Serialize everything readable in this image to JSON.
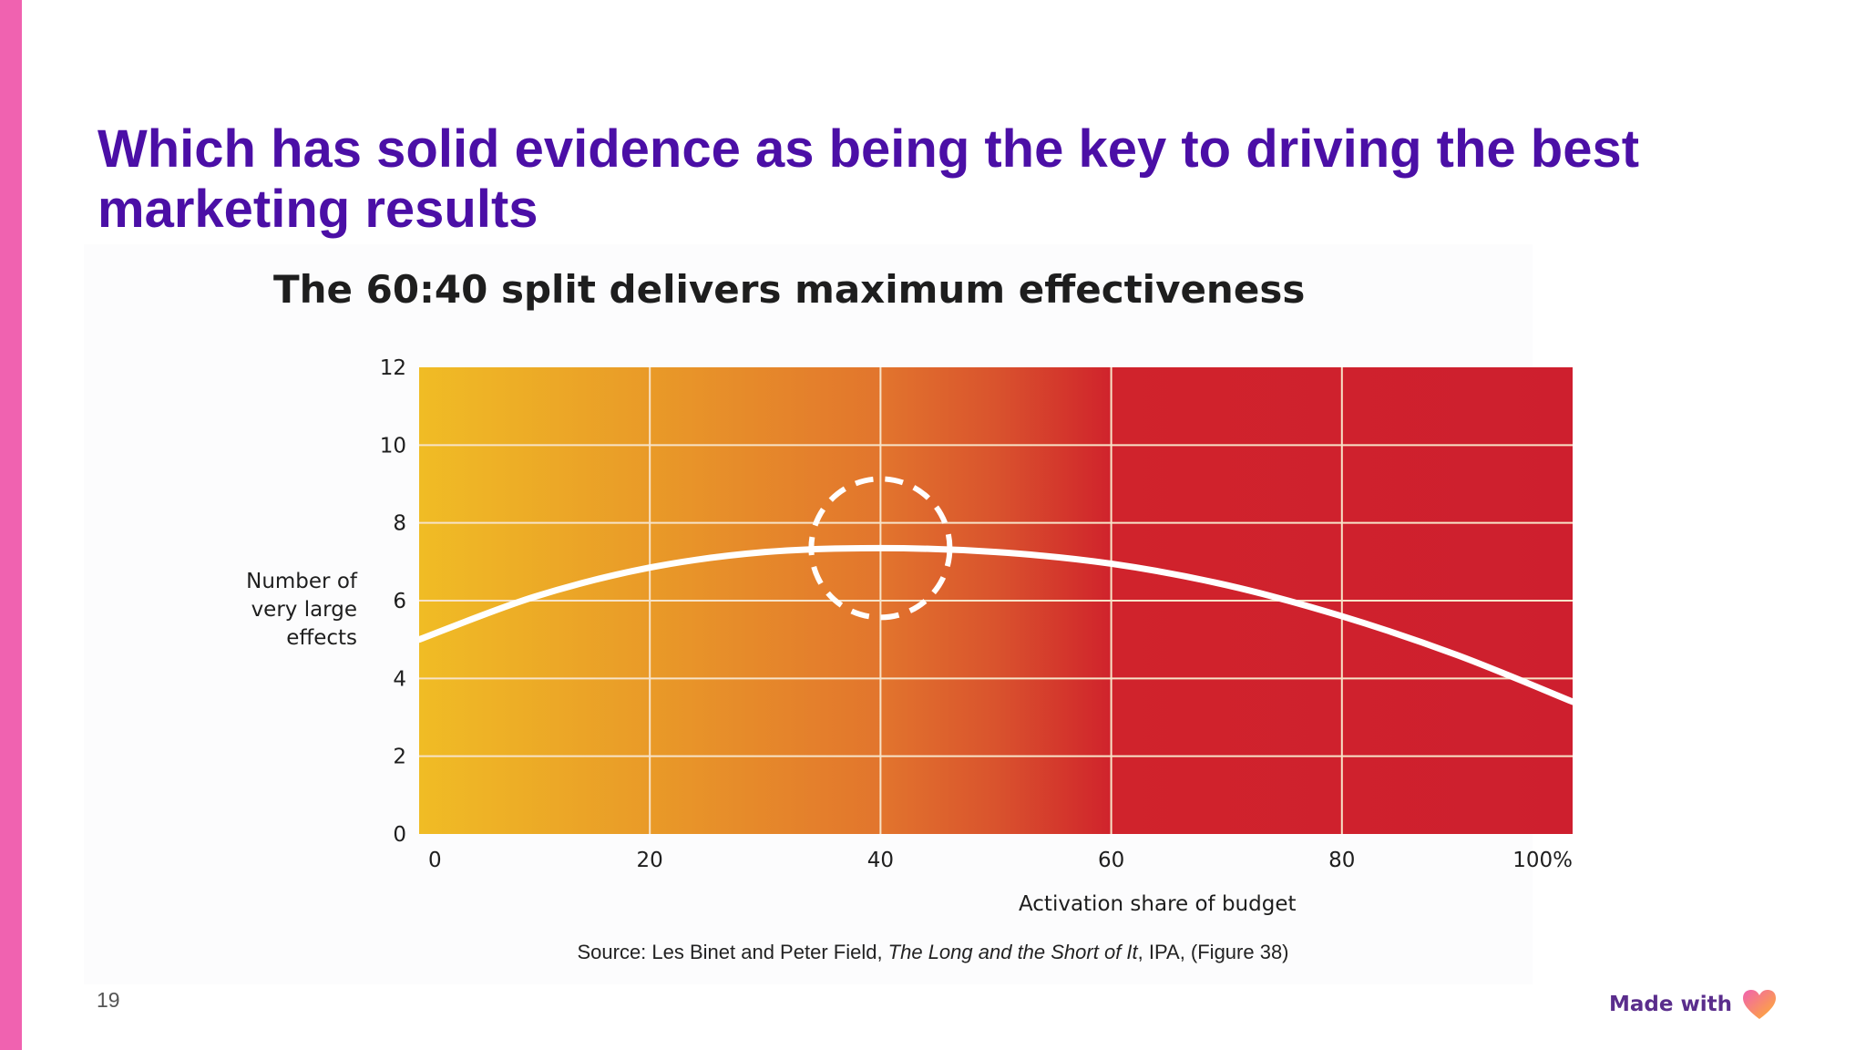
{
  "slide": {
    "title": "Which has solid evidence as being the key to driving the best marketing results",
    "page_number": "19",
    "footer_brand": "Made with",
    "footer_brand_icon": "heart-icon",
    "colors": {
      "title": "#4b0fa6",
      "accent_bar": "#f062b0",
      "heart_left": "#f062b0",
      "heart_right": "#ffb02e"
    }
  },
  "source": {
    "prefix": "Source: Les Binet and Peter Field, ",
    "book": "The Long and the Short of It",
    "suffix": ", IPA, (Figure 38)"
  },
  "chart_data": {
    "type": "line",
    "title": "The 60:40 split delivers maximum effectiveness",
    "xlabel": "Activation share of budget",
    "ylabel_lines": [
      "Number of",
      "very large",
      "effects"
    ],
    "xlim": [
      0,
      100
    ],
    "ylim": [
      0,
      12
    ],
    "x_ticks": [
      {
        "value": 0,
        "label": "0"
      },
      {
        "value": 20,
        "label": "20"
      },
      {
        "value": 40,
        "label": "40"
      },
      {
        "value": 60,
        "label": "60"
      },
      {
        "value": 80,
        "label": "80"
      },
      {
        "value": 100,
        "label": "100%"
      }
    ],
    "y_ticks": [
      {
        "value": 0,
        "label": "0"
      },
      {
        "value": 2,
        "label": "2"
      },
      {
        "value": 4,
        "label": "4"
      },
      {
        "value": 6,
        "label": "6"
      },
      {
        "value": 8,
        "label": "8"
      },
      {
        "value": 10,
        "label": "10"
      },
      {
        "value": 12,
        "label": "12"
      }
    ],
    "grid": true,
    "series": [
      {
        "color": "#ffffff",
        "x": [
          0,
          10,
          20,
          30,
          40,
          50,
          60,
          70,
          80,
          90,
          100
        ],
        "y": [
          5.0,
          6.1,
          6.85,
          7.25,
          7.35,
          7.25,
          6.95,
          6.4,
          5.6,
          4.6,
          3.4
        ]
      }
    ],
    "highlight": {
      "shape": "dashed-circle",
      "x": 40,
      "y": 7.35,
      "color": "#ffffff"
    },
    "background_gradient": [
      {
        "x": 0,
        "color": "#f0bc25"
      },
      {
        "x": 20,
        "color": "#e99a28"
      },
      {
        "x": 40,
        "color": "#e2752d"
      },
      {
        "x": 50,
        "color": "#d9532d"
      },
      {
        "x": 60,
        "color": "#d0232c"
      },
      {
        "x": 100,
        "color": "#ce1f2e"
      }
    ],
    "gridline_color": "#f7e3c8"
  }
}
